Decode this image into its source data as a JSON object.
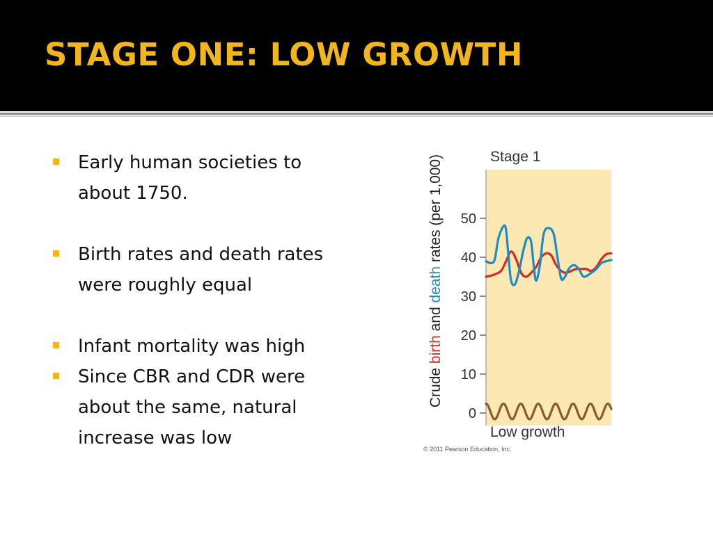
{
  "slide": {
    "title": "STAGE ONE: LOW GROWTH",
    "accent_color": "#f2b51c",
    "bullets": [
      "Early human societies to about 1750.",
      "Birth rates and death rates were roughly equal",
      "Infant mortality was high",
      "Since CBR and CDR were about the same, natural increase was low"
    ]
  },
  "chart_data": {
    "type": "line",
    "panel_label": "Stage 1",
    "bottom_label": "Low growth",
    "credit": "© 2011 Pearson Education, Inc.",
    "ylabel_parts": [
      {
        "text": "Crude ",
        "color": "#222222"
      },
      {
        "text": "birth",
        "color": "#d9281f"
      },
      {
        "text": " and ",
        "color": "#222222"
      },
      {
        "text": "death",
        "color": "#1f8bc2"
      },
      {
        "text": " rates (per 1,000)",
        "color": "#222222"
      }
    ],
    "ylim": [
      0,
      50
    ],
    "yticks": [
      "0",
      "10",
      "20",
      "30",
      "40",
      "50"
    ],
    "panel_color": "#fbe8b2",
    "series": [
      {
        "key": "death",
        "color": "#1f8bc2",
        "x": [
          0,
          4,
          7,
          10,
          14,
          16,
          18,
          20,
          23,
          26,
          30,
          33,
          36,
          38,
          40,
          43,
          46,
          50,
          54,
          57,
          60,
          63,
          66,
          70,
          74,
          78,
          84,
          88,
          92,
          96,
          100
        ],
        "y": [
          39,
          38.5,
          39.5,
          45,
          48,
          47,
          40,
          34,
          33,
          36,
          42,
          45,
          44,
          38,
          34,
          38,
          46,
          47.5,
          46,
          40,
          34.5,
          35,
          37,
          38,
          37,
          35,
          36,
          37,
          38.5,
          39,
          39.3
        ]
      },
      {
        "key": "birth",
        "color": "#d9281f",
        "x": [
          0,
          6,
          12,
          16,
          20,
          24,
          28,
          32,
          36,
          40,
          44,
          48,
          52,
          56,
          60,
          64,
          68,
          72,
          76,
          80,
          84,
          88,
          92,
          96,
          100
        ],
        "y": [
          35,
          35.5,
          36.5,
          39,
          41.5,
          39.5,
          36,
          35,
          36,
          37.5,
          40,
          41,
          40.5,
          38,
          36.5,
          36,
          36.5,
          37,
          37,
          37,
          36.5,
          37.5,
          39.5,
          40.8,
          41
        ]
      },
      {
        "key": "natural_increase",
        "color": "#8a5a2b",
        "x": [
          0,
          100
        ],
        "y": [
          0.4,
          0.4
        ],
        "oscillation_amplitude": 2,
        "oscillation_cycles": 7.2
      }
    ]
  }
}
